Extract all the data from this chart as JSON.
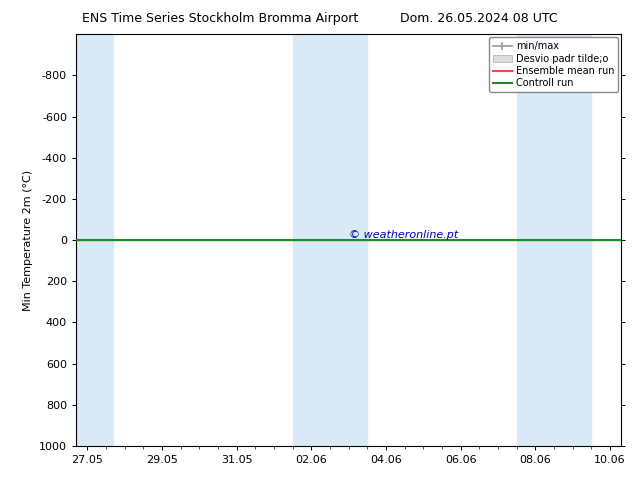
{
  "title_left": "ENS Time Series Stockholm Bromma Airport",
  "title_right": "Dom. 26.05.2024 08 UTC",
  "ylabel": "Min Temperature 2m (°C)",
  "ylim": [
    -1000,
    1000
  ],
  "yticks": [
    -800,
    -600,
    -400,
    -200,
    0,
    200,
    400,
    600,
    800,
    1000
  ],
  "xtick_labels": [
    "27.05",
    "29.05",
    "31.05",
    "02.06",
    "04.06",
    "06.06",
    "08.06",
    "10.06"
  ],
  "xtick_positions": [
    0,
    2,
    4,
    6,
    8,
    10,
    12,
    14
  ],
  "xlim": [
    -0.3,
    14.3
  ],
  "shaded_ranges": [
    [
      -0.3,
      0.7
    ],
    [
      5.5,
      7.5
    ],
    [
      11.5,
      13.5
    ]
  ],
  "shaded_color": "#d8eaf8",
  "control_run_y": 0,
  "control_run_color": "#228B22",
  "ensemble_mean_color": "#ff4444",
  "watermark": "© weatheronline.pt",
  "watermark_color": "#0000cc",
  "background_color": "#ffffff",
  "figsize": [
    6.34,
    4.9
  ],
  "dpi": 100
}
